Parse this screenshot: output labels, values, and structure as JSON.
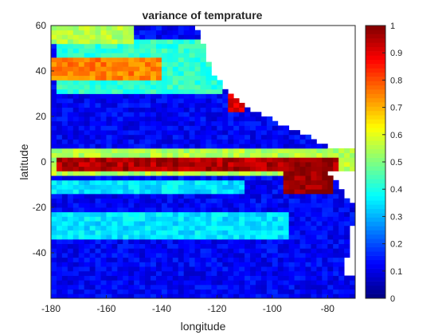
{
  "chart_data": {
    "type": "heatmap",
    "title": "variance of temprature",
    "xlabel": "longitude",
    "ylabel": "latitude",
    "xlim": [
      -180,
      -70
    ],
    "ylim": [
      -60,
      60
    ],
    "xticks": [
      -180,
      -160,
      -140,
      -120,
      -100,
      -80
    ],
    "yticks": [
      -40,
      -20,
      0,
      20,
      40,
      60
    ],
    "colorbar": {
      "colormap": "jet",
      "range": [
        0,
        1
      ],
      "ticks": [
        0,
        0.1,
        0.2,
        0.3,
        0.4,
        0.5,
        0.6,
        0.7,
        0.8,
        0.9,
        1
      ],
      "position": "right"
    },
    "grid": false,
    "cell_size_deg": 2,
    "no_data_color": "#ffffff",
    "features": [
      {
        "kind": "background",
        "lat_range": [
          -60,
          60
        ],
        "value": 0.12
      },
      {
        "kind": "equatorial_band",
        "lon_range": [
          -178,
          -76
        ],
        "lat_center": -0.5,
        "half_width_deg": 3.0,
        "value": 0.95
      },
      {
        "kind": "equatorial_halo",
        "lon_range": [
          -180,
          -70
        ],
        "lat_center": 0,
        "half_width_deg": 5.5,
        "value": 0.55
      },
      {
        "kind": "eastern_tongue",
        "lon_range": [
          -95,
          -78
        ],
        "lat_range": [
          -14,
          2
        ],
        "value": 0.98
      },
      {
        "kind": "midlat_band",
        "lon_range": [
          -180,
          -140
        ],
        "lat_range": [
          36,
          46
        ],
        "value": 0.75
      },
      {
        "kind": "midlat_band",
        "lon_range": [
          -178,
          -118
        ],
        "lat_range": [
          30,
          54
        ],
        "value": 0.42
      },
      {
        "kind": "northern_band",
        "lon_range": [
          -180,
          -150
        ],
        "lat_range": [
          52,
          60
        ],
        "value": 0.55
      },
      {
        "kind": "coastal_hotspot",
        "lon": -113,
        "lat": 26,
        "value": 0.9
      },
      {
        "kind": "southern_band",
        "lon_range": [
          -180,
          -95
        ],
        "lat_range": [
          -34,
          -22
        ],
        "value": 0.35
      },
      {
        "kind": "southern_band",
        "lon_range": [
          -180,
          -110
        ],
        "lat_range": [
          -14,
          -8
        ],
        "value": 0.35
      },
      {
        "kind": "land_mask",
        "description": "North America",
        "boundary_lon_at_lat": [
          [
            60,
            -128
          ],
          [
            48,
            -124
          ],
          [
            40,
            -122
          ],
          [
            32,
            -117
          ],
          [
            26,
            -112
          ],
          [
            22,
            -106
          ],
          [
            16,
            -96
          ],
          [
            10,
            -85
          ],
          [
            6,
            -78
          ]
        ]
      },
      {
        "kind": "land_mask",
        "description": "South America",
        "boundary_lon_at_lat": [
          [
            -4,
            -80
          ],
          [
            -20,
            -70
          ],
          [
            -50,
            -74
          ]
        ]
      }
    ]
  }
}
